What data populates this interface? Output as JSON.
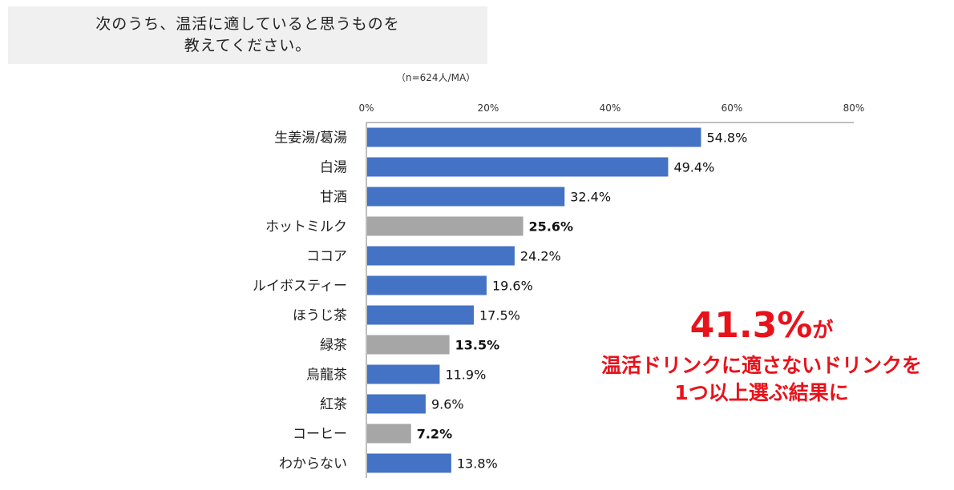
{
  "header": {
    "question_line1": "次のうち、温活に適していると思うものを",
    "question_line2": "教えてください。",
    "sample_note": "（n=624人/MA）"
  },
  "chart_data": {
    "type": "bar",
    "orientation": "horizontal",
    "xlim": [
      0,
      80
    ],
    "ticks": [
      "0%",
      "20%",
      "40%",
      "60%",
      "80%"
    ],
    "tick_values": [
      0,
      20,
      40,
      60,
      80
    ],
    "categories": [
      "生姜湯/葛湯",
      "白湯",
      "甘酒",
      "ホットミルク",
      "ココア",
      "ルイボスティー",
      "ほうじ茶",
      "緑茶",
      "烏龍茶",
      "紅茶",
      "コーヒー",
      "わからない"
    ],
    "values": [
      54.8,
      49.4,
      32.4,
      25.6,
      24.2,
      19.6,
      17.5,
      13.5,
      11.9,
      9.6,
      7.2,
      13.8
    ],
    "labels": [
      "54.8%",
      "49.4%",
      "32.4%",
      "25.6%",
      "24.2%",
      "19.6%",
      "17.5%",
      "13.5%",
      "11.9%",
      "9.6%",
      "7.2%",
      "13.8%"
    ],
    "highlighted": [
      false,
      false,
      false,
      true,
      false,
      false,
      false,
      true,
      false,
      false,
      true,
      false
    ],
    "colors": {
      "normal": "#4472c4",
      "highlight": "#a6a6a6",
      "axis": "#7f7f7f"
    }
  },
  "callout": {
    "percent": "41.3%",
    "particle": "が",
    "line1": "温活ドリンクに適さないドリンクを",
    "line2": "1つ以上選ぶ結果に",
    "color": "#e8121b"
  }
}
